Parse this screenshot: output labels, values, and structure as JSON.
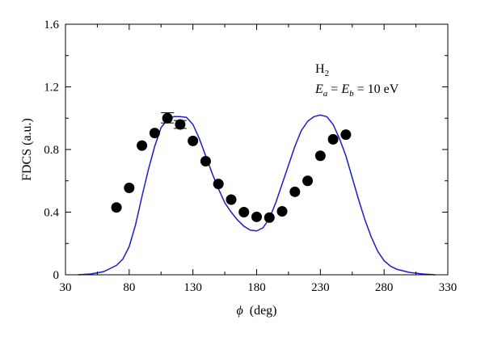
{
  "chart_data": {
    "type": "scatter",
    "xlabel_symbol": "ϕ",
    "xlabel_unit": "(deg)",
    "ylabel": "FDCS (a.u.)",
    "xlim": [
      30,
      330
    ],
    "ylim": [
      0,
      1.6
    ],
    "x_ticks": [
      30,
      80,
      130,
      180,
      230,
      280,
      330
    ],
    "y_ticks": [
      0,
      0.4,
      0.8,
      1.2,
      1.6
    ],
    "x_tick_labels": [
      "30",
      "80",
      "130",
      "180",
      "230",
      "280",
      "330"
    ],
    "y_tick_labels": [
      "0",
      "0.4",
      "0.8",
      "1.2",
      "1.6"
    ],
    "grid": false,
    "annotation": {
      "molecule": "H",
      "molecule_sub": "2",
      "energy": {
        "E1": "E",
        "sub1": "a",
        "eq1": " = ",
        "E2": "E",
        "sub2": "b",
        "eq2": " = 10 eV"
      }
    },
    "series": [
      {
        "kind": "points",
        "color": "#000000",
        "x": [
          70,
          80,
          90,
          100,
          110,
          120,
          130,
          140,
          150,
          160,
          170,
          180,
          190,
          200,
          210,
          220,
          230,
          240,
          250
        ],
        "y": [
          0.43,
          0.555,
          0.825,
          0.905,
          1.0,
          0.96,
          0.855,
          0.725,
          0.58,
          0.48,
          0.4,
          0.37,
          0.365,
          0.405,
          0.53,
          0.6,
          0.76,
          0.865,
          0.895
        ],
        "error_bars": [
          {
            "x": 110,
            "low": 0.97,
            "high": 1.035
          },
          {
            "x": 120,
            "low": 0.935,
            "high": 0.985
          }
        ]
      },
      {
        "kind": "line",
        "color": "#1c1cc8",
        "x": [
          40,
          50,
          60,
          65,
          70,
          75,
          80,
          85,
          90,
          95,
          100,
          105,
          110,
          115,
          120,
          125,
          130,
          135,
          140,
          145,
          150,
          155,
          160,
          165,
          170,
          175,
          180,
          185,
          190,
          195,
          200,
          205,
          210,
          215,
          220,
          225,
          230,
          235,
          240,
          245,
          250,
          255,
          260,
          265,
          270,
          275,
          280,
          285,
          290,
          300,
          310,
          320
        ],
        "y": [
          0.0,
          0.005,
          0.02,
          0.04,
          0.06,
          0.1,
          0.18,
          0.32,
          0.5,
          0.67,
          0.82,
          0.94,
          0.99,
          1.01,
          1.01,
          1.005,
          0.96,
          0.87,
          0.76,
          0.65,
          0.55,
          0.46,
          0.4,
          0.35,
          0.31,
          0.285,
          0.28,
          0.3,
          0.36,
          0.46,
          0.58,
          0.7,
          0.82,
          0.92,
          0.98,
          1.01,
          1.02,
          1.01,
          0.96,
          0.87,
          0.76,
          0.62,
          0.48,
          0.35,
          0.24,
          0.15,
          0.09,
          0.055,
          0.035,
          0.015,
          0.005,
          0.0
        ]
      }
    ]
  }
}
